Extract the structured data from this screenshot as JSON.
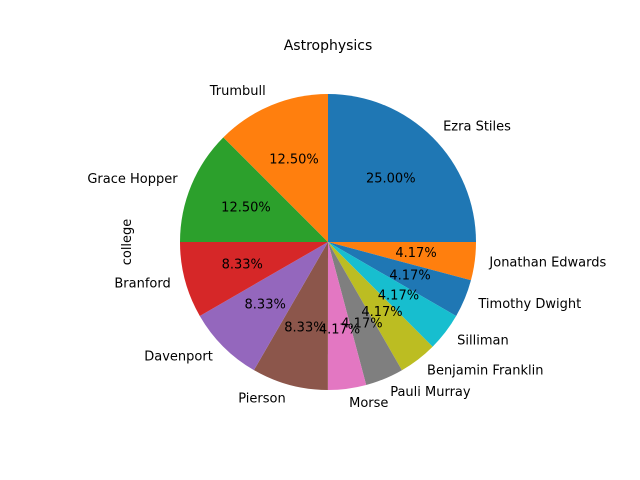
{
  "chart_data": {
    "type": "pie",
    "title": "Astrophysics",
    "ylabel": "college",
    "start_angle_deg": 90,
    "direction": "clockwise",
    "slices": [
      {
        "label": "Ezra Stiles",
        "value": 25.0,
        "pct_label": "25.00%",
        "color": "#1f77b4"
      },
      {
        "label": "Jonathan Edwards",
        "value": 4.17,
        "pct_label": "4.17%",
        "color": "#ff7f0e"
      },
      {
        "label": "Timothy Dwight",
        "value": 4.17,
        "pct_label": "4.17%",
        "color": "#1f77b4"
      },
      {
        "label": "Silliman",
        "value": 4.17,
        "pct_label": "4.17%",
        "color": "#17becf"
      },
      {
        "label": "Benjamin Franklin",
        "value": 4.17,
        "pct_label": "4.17%",
        "color": "#bcbd22"
      },
      {
        "label": "Pauli Murray",
        "value": 4.17,
        "pct_label": "4.17%",
        "color": "#7f7f7f"
      },
      {
        "label": "Morse",
        "value": 4.17,
        "pct_label": "4.17%",
        "color": "#e377c2"
      },
      {
        "label": "Pierson",
        "value": 8.33,
        "pct_label": "8.33%",
        "color": "#8c564b"
      },
      {
        "label": "Davenport",
        "value": 8.33,
        "pct_label": "8.33%",
        "color": "#9467bd"
      },
      {
        "label": "Branford",
        "value": 8.33,
        "pct_label": "8.33%",
        "color": "#d62728"
      },
      {
        "label": "Grace Hopper",
        "value": 12.5,
        "pct_label": "12.50%",
        "color": "#2ca02c"
      },
      {
        "label": "Trumbull",
        "value": 12.5,
        "pct_label": "12.50%",
        "color": "#ff7f0e"
      }
    ]
  }
}
